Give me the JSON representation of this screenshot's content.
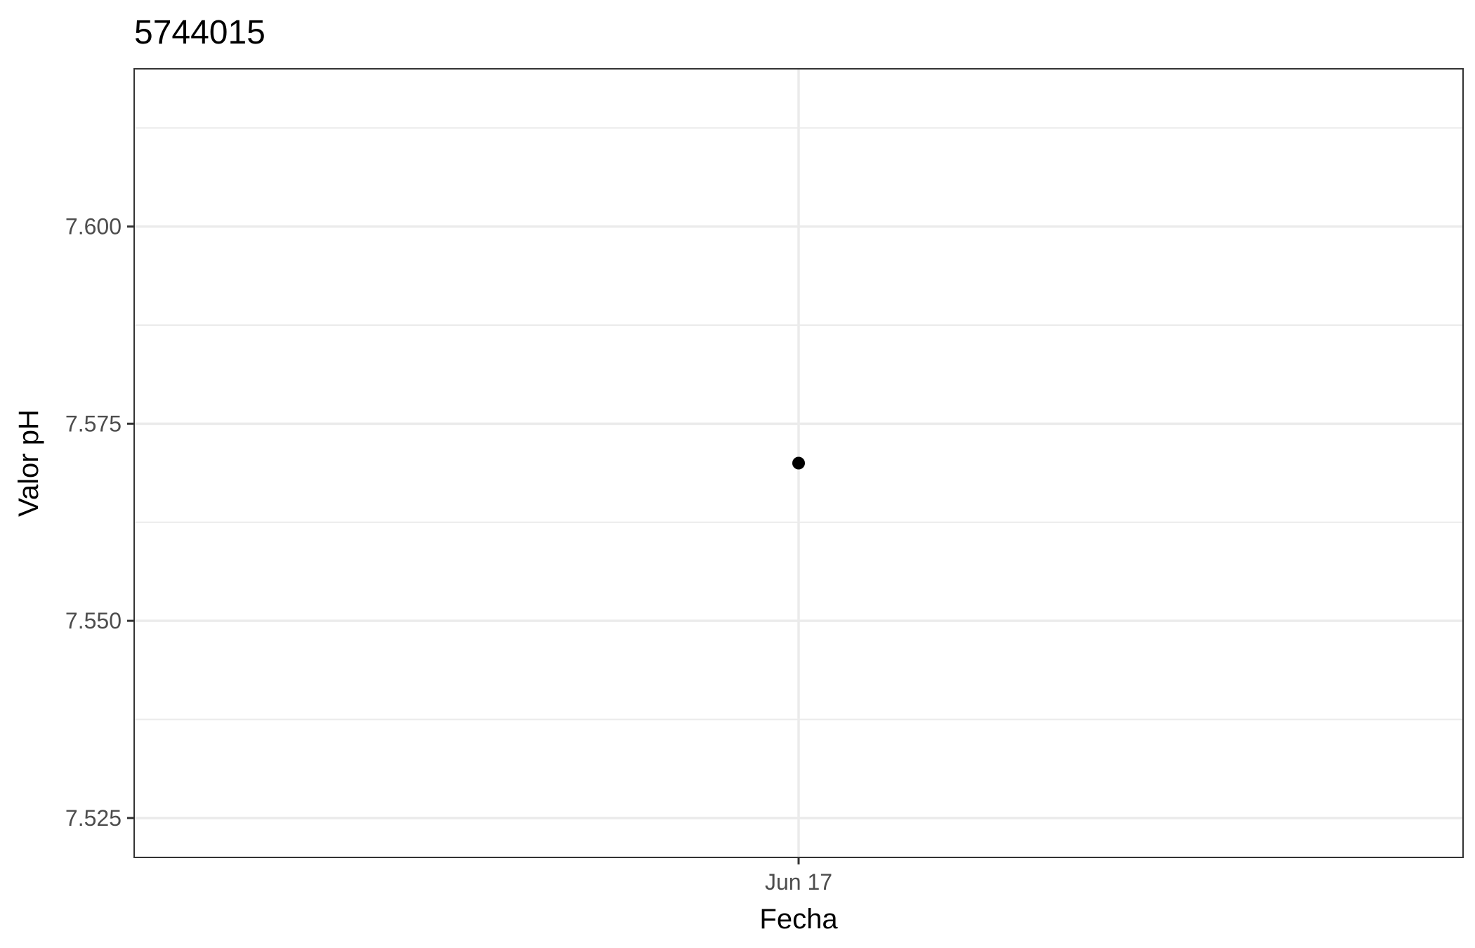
{
  "chart_data": {
    "type": "scatter",
    "title": "5744015",
    "xlabel": "Fecha",
    "ylabel": "Valor pH",
    "x_ticks": [
      "Jun 17"
    ],
    "y_ticks": [
      "7.525",
      "7.550",
      "7.575",
      "7.600"
    ],
    "ylim": [
      7.52,
      7.62
    ],
    "grid": true,
    "series": [
      {
        "points": [
          {
            "x": "Jun 17",
            "y": 7.57
          }
        ]
      }
    ],
    "colors": {
      "point": "#000000",
      "grid": "#ebebeb",
      "panel_border": "#333333",
      "tick_label": "#4d4d4d"
    }
  }
}
